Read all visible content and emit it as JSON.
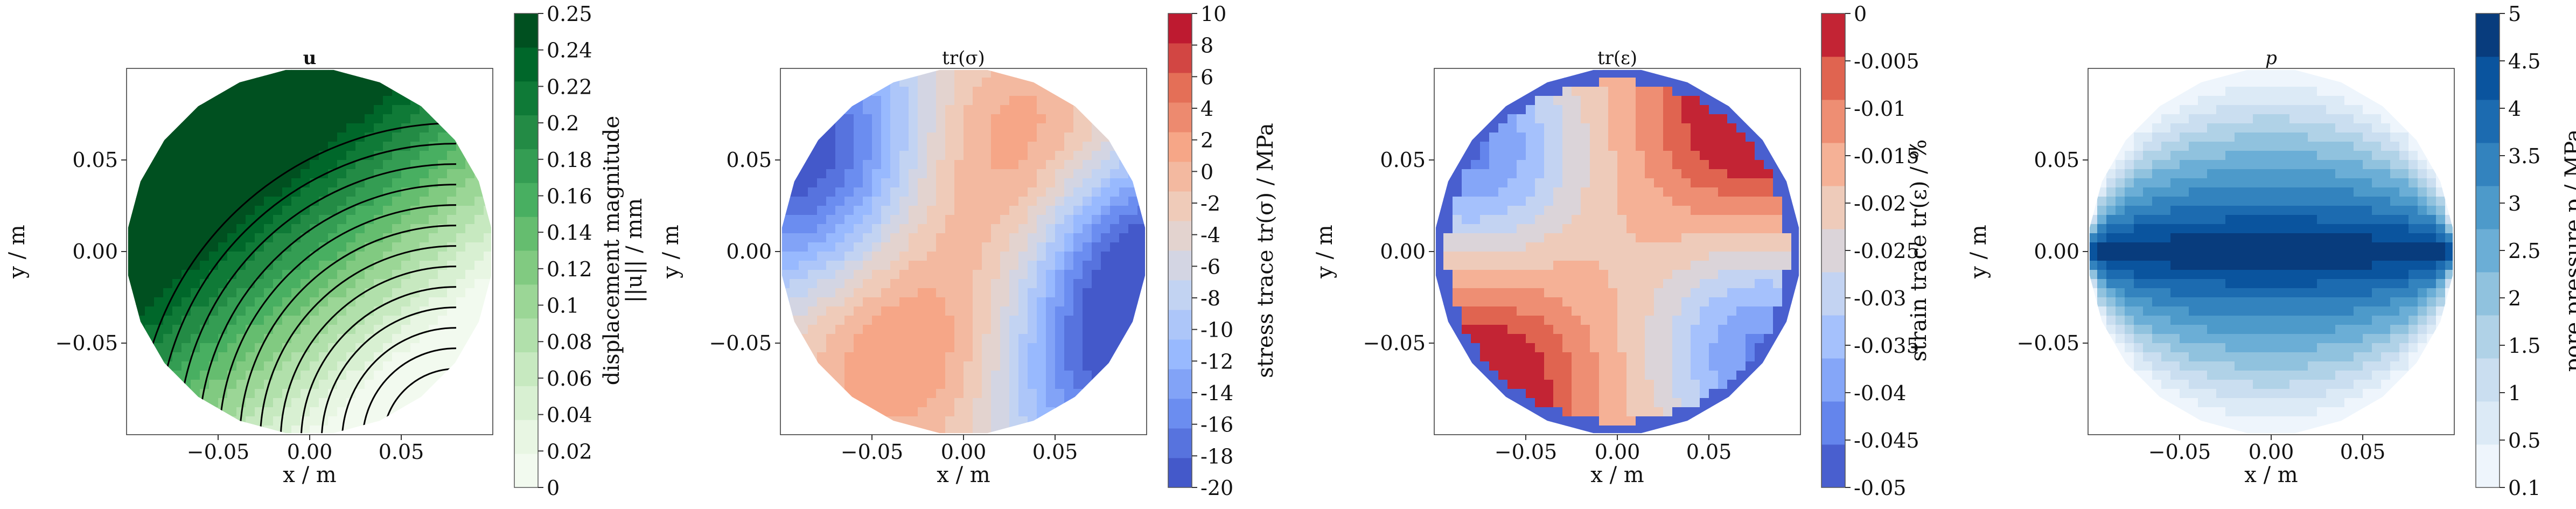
{
  "chart_data": [
    {
      "type": "heatmap",
      "title": "u",
      "xlabel": "x / m",
      "ylabel": "y / m",
      "xlim": [
        -0.1,
        0.1
      ],
      "ylim": [
        -0.1,
        0.1
      ],
      "xticks": [
        "−0.05",
        "0.00",
        "0.05"
      ],
      "yticks": [
        "0.05",
        "0.00",
        "−0.05"
      ],
      "colorbar_label": "displacement magnitude ||u|| / mm",
      "colorbar_label_lines": [
        "displacement magnitude",
        "||u|| / mm"
      ],
      "colorbar_ticks": [
        "0.25",
        "0.24",
        "0.22",
        "0.2",
        "0.18",
        "0.16",
        "0.14",
        "0.12",
        "0.1",
        "0.08",
        "0.06",
        "0.04",
        "0.02",
        "0"
      ],
      "colorbar_range": [
        0,
        0.25
      ],
      "colormap": "Greens",
      "colors": [
        "#f7fcf5",
        "#e5f5e0",
        "#c7e9c0",
        "#a1d99b",
        "#74c476",
        "#41ab5d",
        "#238b45",
        "#006d2c",
        "#00441b"
      ],
      "overlay": "streamlines",
      "field_description": "displacement increases toward upper-left edge, minimum near lower-right"
    },
    {
      "type": "heatmap",
      "title": "tr(σ)",
      "xlabel": "x / m",
      "ylabel": "y / m",
      "xlim": [
        -0.1,
        0.1
      ],
      "ylim": [
        -0.1,
        0.1
      ],
      "xticks": [
        "−0.05",
        "0.00",
        "0.05"
      ],
      "yticks": [
        "0.05",
        "0.00",
        "−0.05"
      ],
      "colorbar_label": "stress trace tr(σ) / MPa",
      "colorbar_ticks": [
        "10",
        "8",
        "6",
        "4",
        "2",
        "0",
        "-2",
        "-4",
        "-6",
        "-8",
        "-10",
        "-12",
        "-14",
        "-16",
        "-18",
        "-20"
      ],
      "colorbar_range": [
        -20,
        10
      ],
      "colormap": "coolwarm",
      "colors": [
        "#3b4cc0",
        "#6688ee",
        "#9abbff",
        "#c9d7f0",
        "#edd1c2",
        "#f7a889",
        "#e26952",
        "#b40426"
      ]
    },
    {
      "type": "heatmap",
      "title": "tr(ε)",
      "xlabel": "x / m",
      "ylabel": "y / m",
      "xlim": [
        -0.1,
        0.1
      ],
      "ylim": [
        -0.1,
        0.1
      ],
      "xticks": [
        "−0.05",
        "0.00",
        "0.05"
      ],
      "yticks": [
        "0.05",
        "0.00",
        "−0.05"
      ],
      "colorbar_label": "strain trace tr(ε) / %",
      "colorbar_ticks": [
        "0",
        "-0.005",
        "-0.01",
        "-0.015",
        "-0.02",
        "-0.025",
        "-0.03",
        "-0.035",
        "-0.04",
        "-0.045",
        "-0.05"
      ],
      "colorbar_range": [
        -0.05,
        0
      ],
      "colormap": "coolwarm",
      "colors": [
        "#3b4cc0",
        "#6688ee",
        "#9abbff",
        "#c9d7f0",
        "#edd1c2",
        "#f7a889",
        "#e26952",
        "#b40426"
      ]
    },
    {
      "type": "heatmap",
      "title": "p",
      "xlabel": "x / m",
      "ylabel": "y / m",
      "xlim": [
        -0.1,
        0.1
      ],
      "ylim": [
        -0.1,
        0.1
      ],
      "xticks": [
        "−0.05",
        "0.00",
        "0.05"
      ],
      "yticks": [
        "0.05",
        "0.00",
        "−0.05"
      ],
      "colorbar_label": "pore pressure p / MPa",
      "colorbar_ticks": [
        "5",
        "4.5",
        "4",
        "3.5",
        "3",
        "2.5",
        "2",
        "1.5",
        "1",
        "0.5",
        "0.1"
      ],
      "colorbar_range": [
        0.1,
        5
      ],
      "colormap": "Blues",
      "colors": [
        "#f7fbff",
        "#deebf7",
        "#c6dbef",
        "#9ecae1",
        "#6baed6",
        "#4292c6",
        "#2171b5",
        "#08519c",
        "#08306b"
      ],
      "field_description": "pressure maximal along horizontal center line, decaying toward top and bottom"
    }
  ]
}
